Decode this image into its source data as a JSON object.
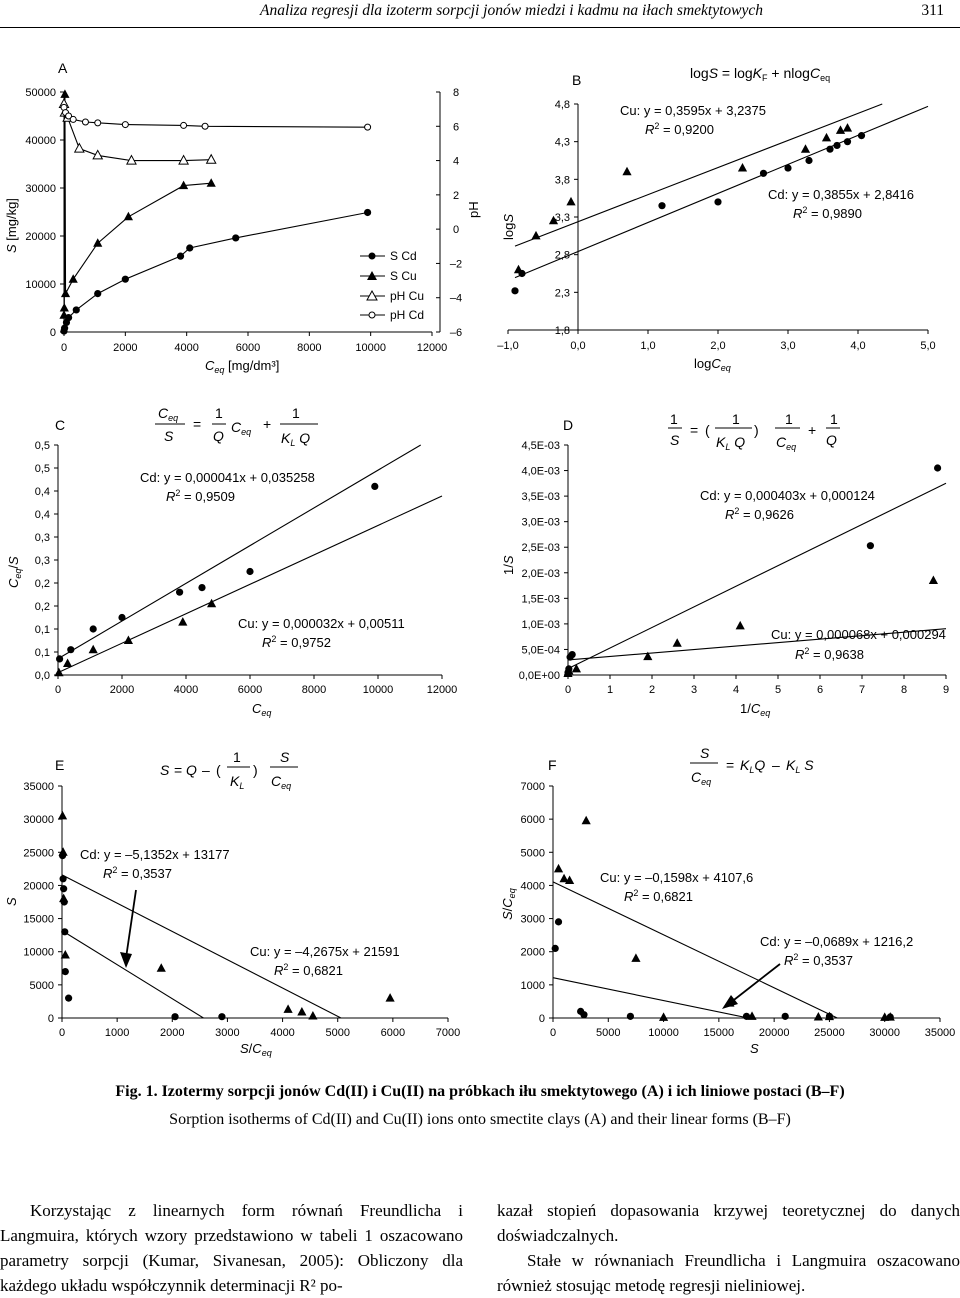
{
  "header": {
    "title": "Analiza regresji dla izoterm sorpcji jonów miedzi i kadmu na iłach smektytowych",
    "page_number": "311"
  },
  "caption": {
    "line1": "Fig. 1. Izotermy sorpcji jonów Cd(II) i Cu(II) na próbkach iłu smektytowego (A) i ich liniowe postaci (B–F)",
    "line2": "Sorption isotherms of Cd(II) and Cu(II) ions onto smectite clays (A) and their linear forms (B–F)"
  },
  "body": {
    "left": "Korzystając z linearnych form równań Freundlicha i Langmuira, których wzory przedstawiono w tabeli 1 oszacowano parametry sorpcji (Kumar, Sivanesan, 2005): Obliczony dla każdego układu współczynnik determinacji R² po-",
    "right_p1": "kazał stopień dopasowania krzywej teoretycznej do danych doświadczalnych.",
    "right_p2": "Stałe w równaniach Freundlicha i Langmuira oszacowano również stosując metodę regresji nieliniowej."
  },
  "chart_data": [
    {
      "panel": "A",
      "type": "line",
      "xlabel": "Ceq [mg/dm³]",
      "ylabel": "S [mg/kg]",
      "y2label": "pH",
      "xlim": [
        0,
        12000
      ],
      "ylim": [
        0,
        50000
      ],
      "y2lim": [
        -6,
        8
      ],
      "xticks": [
        "0",
        "2000",
        "4000",
        "6000",
        "8000",
        "10000",
        "12000"
      ],
      "yticks": [
        "0",
        "10000",
        "20000",
        "30000",
        "40000",
        "50000"
      ],
      "y2ticks": [
        "8",
        "6",
        "4",
        "2",
        "0",
        "–2",
        "–4",
        "–6"
      ],
      "legend": [
        "S Cd",
        "S Cu",
        "pH Cu",
        "pH Cd"
      ],
      "series": [
        {
          "name": "S Cd",
          "axis": "y",
          "marker": "circle",
          "x": [
            0,
            20,
            80,
            150,
            400,
            1100,
            2000,
            3800,
            4100,
            5600,
            9900
          ],
          "y": [
            200,
            800,
            2000,
            3000,
            4600,
            8000,
            11000,
            15800,
            17500,
            19600,
            24900
          ]
        },
        {
          "name": "S Cu",
          "axis": "y",
          "marker": "triangle",
          "x": [
            0,
            10,
            30,
            50,
            300,
            1100,
            2100,
            3900,
            4800
          ],
          "y": [
            3500,
            5000,
            49500,
            8000,
            11000,
            18500,
            24000,
            30500,
            31000
          ]
        },
        {
          "name": "pH Cu",
          "axis": "y2",
          "marker": "triangle-open",
          "x": [
            0,
            30,
            120,
            500,
            1100,
            2200,
            3900,
            4800
          ],
          "y": [
            7.3,
            6.8,
            6.5,
            4.7,
            4.3,
            4.0,
            4.0,
            4.05
          ]
        },
        {
          "name": "pH Cd",
          "axis": "y2",
          "marker": "circle-open",
          "x": [
            0,
            50,
            150,
            300,
            700,
            1100,
            2000,
            3900,
            4600,
            9900
          ],
          "y": [
            7.1,
            6.8,
            6.6,
            6.4,
            6.25,
            6.2,
            6.1,
            6.05,
            6.0,
            5.95
          ]
        }
      ]
    },
    {
      "panel": "B",
      "type": "scatter",
      "equation": "logS = logKF + nlogCeq",
      "xlabel": "logCeq",
      "ylabel": "logS",
      "xlim": [
        -1.0,
        5.0
      ],
      "ylim": [
        1.8,
        4.8
      ],
      "xticks": [
        "–1,0",
        "0,0",
        "1,0",
        "2,0",
        "3,0",
        "4,0",
        "5,0"
      ],
      "yticks": [
        "1,8",
        "2,3",
        "2,8",
        "3,3",
        "3,8",
        "4,3",
        "4,8"
      ],
      "fits": [
        {
          "name": "Cu",
          "label": "Cu: y = 0,3595x + 3,2375",
          "r2": "= 0,9200",
          "slope": 0.3595,
          "intercept": 3.2375
        },
        {
          "name": "Cd",
          "label": "Cd: y = 0,3855x + 2,8416",
          "r2": "= 0,9890",
          "slope": 0.3855,
          "intercept": 2.8416
        }
      ],
      "series": [
        {
          "name": "Cu",
          "marker": "triangle",
          "x": [
            -0.85,
            -0.6,
            -0.35,
            -0.1,
            0.7,
            2.35,
            3.25,
            3.55,
            3.75,
            3.85
          ],
          "y": [
            2.6,
            3.05,
            3.25,
            3.5,
            3.9,
            3.95,
            4.2,
            4.35,
            4.45,
            4.48
          ]
        },
        {
          "name": "Cd",
          "marker": "circle",
          "x": [
            -0.9,
            -0.8,
            1.2,
            2.0,
            2.65,
            3.0,
            3.3,
            3.6,
            3.7,
            3.85,
            4.05
          ],
          "y": [
            2.32,
            2.55,
            3.45,
            3.5,
            3.88,
            3.95,
            4.05,
            4.2,
            4.25,
            4.3,
            4.38
          ]
        }
      ]
    },
    {
      "panel": "C",
      "type": "scatter",
      "equation": "Ceq/S = (1/Q) Ceq + 1/(KL Q)",
      "xlabel": "Ceq",
      "ylabel": "Ceq/S",
      "xlim": [
        0,
        12000
      ],
      "ylim": [
        0,
        0.5
      ],
      "xticks": [
        "0",
        "2000",
        "4000",
        "6000",
        "8000",
        "10000",
        "12000"
      ],
      "yticks": [
        "0,0",
        "0,1",
        "0,1",
        "0,2",
        "0,2",
        "0,3",
        "0,3",
        "0,4",
        "0,4",
        "0,5",
        "0,5"
      ],
      "fits": [
        {
          "name": "Cd",
          "label": "Cd: y = 0,000041x + 0,035258",
          "r2": "= 0,9509",
          "slope": 4.1e-05,
          "intercept": 0.035258
        },
        {
          "name": "Cu",
          "label": "Cu: y = 0,000032x + 0,00511",
          "r2": "= 0,9752",
          "slope": 3.2e-05,
          "intercept": 0.00511
        }
      ],
      "series": [
        {
          "name": "Cd",
          "marker": "circle",
          "x": [
            50,
            400,
            1100,
            2000,
            3800,
            4500,
            6000,
            9900
          ],
          "y": [
            0.035,
            0.055,
            0.1,
            0.125,
            0.18,
            0.19,
            0.225,
            0.41
          ]
        },
        {
          "name": "Cu",
          "marker": "triangle",
          "x": [
            30,
            300,
            1100,
            2200,
            3900,
            4800
          ],
          "y": [
            0.005,
            0.025,
            0.055,
            0.075,
            0.115,
            0.155
          ]
        }
      ]
    },
    {
      "panel": "D",
      "type": "scatter",
      "equation": "1/S = (1/(KL Q)) (1/Ceq) + 1/Q",
      "xlabel": "1/Ceq",
      "ylabel": "1/S",
      "xlim": [
        0,
        9
      ],
      "ylim": [
        0,
        0.0045
      ],
      "xticks": [
        "0",
        "1",
        "2",
        "3",
        "4",
        "5",
        "6",
        "7",
        "8",
        "9"
      ],
      "yticks": [
        "0,0E+00",
        "5,0E-04",
        "1,0E-03",
        "1,5E-03",
        "2,0E-03",
        "2,5E-03",
        "3,0E-03",
        "3,5E-03",
        "4,0E-03",
        "4,5E-03"
      ],
      "fits": [
        {
          "name": "Cd",
          "label": "Cd: y = 0,000403x + 0,000124",
          "r2": "= 0,9626",
          "slope": 0.000403,
          "intercept": 0.000124
        },
        {
          "name": "Cu",
          "label": "Cu: y = 0,000068x + 0,000294",
          "r2": "= 0,9638",
          "slope": 6.8e-05,
          "intercept": 0.000294
        }
      ],
      "series": [
        {
          "name": "Cd",
          "marker": "circle",
          "x": [
            0.0,
            0.02,
            0.05,
            0.1,
            7.2,
            8.8
          ],
          "y": [
            5e-05,
            0.00012,
            0.00035,
            0.0004,
            0.00253,
            0.00405
          ]
        },
        {
          "name": "Cu",
          "marker": "triangle",
          "x": [
            0.0,
            0.02,
            0.2,
            1.9,
            2.6,
            4.1,
            8.7
          ],
          "y": [
            3e-05,
            8e-05,
            0.00012,
            0.00036,
            0.00062,
            0.00096,
            0.00185
          ]
        }
      ]
    },
    {
      "panel": "E",
      "type": "scatter",
      "equation": "S = Q – (1/KL) S/Ceq",
      "xlabel": "S/Ceq",
      "ylabel": "S",
      "xlim": [
        0,
        7000
      ],
      "ylim": [
        0,
        35000
      ],
      "xticks": [
        "0",
        "1000",
        "2000",
        "3000",
        "4000",
        "5000",
        "6000",
        "7000"
      ],
      "yticks": [
        "0",
        "5000",
        "10000",
        "15000",
        "20000",
        "25000",
        "30000",
        "35000"
      ],
      "fits": [
        {
          "name": "Cd",
          "label": "Cd: y = –5,1352x + 13177",
          "r2": "= 0,3537",
          "slope": -5.1352,
          "intercept": 13177
        },
        {
          "name": "Cu",
          "label": "Cu: y = –4,2675x + 21591",
          "r2": "= 0,6821",
          "slope": -4.2675,
          "intercept": 21591
        }
      ],
      "series": [
        {
          "name": "Cd",
          "marker": "circle",
          "x": [
            10,
            20,
            30,
            40,
            50,
            60,
            120,
            2050,
            2900
          ],
          "y": [
            24500,
            21000,
            19500,
            17500,
            13000,
            7000,
            3000,
            200,
            200
          ]
        },
        {
          "name": "Cu",
          "marker": "triangle",
          "x": [
            10,
            20,
            30,
            60,
            1800,
            4100,
            4350,
            4550,
            5950
          ],
          "y": [
            30500,
            25000,
            18000,
            9500,
            7500,
            1300,
            900,
            300,
            3000
          ]
        }
      ]
    },
    {
      "panel": "F",
      "type": "scatter",
      "equation": "S/Ceq = KL Q – KL S",
      "xlabel": "S",
      "ylabel": "S/Ceq",
      "xlim": [
        0,
        35000
      ],
      "ylim": [
        0,
        7000
      ],
      "xticks": [
        "0",
        "5000",
        "10000",
        "15000",
        "20000",
        "25000",
        "30000",
        "35000"
      ],
      "yticks": [
        "0",
        "1000",
        "2000",
        "3000",
        "4000",
        "5000",
        "6000",
        "7000"
      ],
      "fits": [
        {
          "name": "Cu",
          "label": "Cu: y = –0,1598x + 4107,6",
          "r2": "= 0,6821",
          "slope": -0.1598,
          "intercept": 4107.6
        },
        {
          "name": "Cd",
          "label": "Cd: y = –0,0689x + 1216,2",
          "r2": "= 0,3537",
          "slope": -0.0689,
          "intercept": 1216.2
        }
      ],
      "series": [
        {
          "name": "Cd",
          "marker": "circle",
          "x": [
            200,
            500,
            2500,
            2800,
            7000,
            17500,
            21000,
            25000,
            30500
          ],
          "y": [
            2100,
            2900,
            200,
            100,
            50,
            50,
            50,
            50,
            30
          ]
        },
        {
          "name": "Cu",
          "marker": "triangle",
          "x": [
            500,
            1000,
            1500,
            3000,
            7500,
            10000,
            16000,
            18000,
            24000,
            25000,
            30000,
            30500
          ],
          "y": [
            4500,
            4200,
            4150,
            5950,
            1800,
            20,
            450,
            50,
            30,
            40,
            20,
            25
          ]
        }
      ]
    }
  ]
}
